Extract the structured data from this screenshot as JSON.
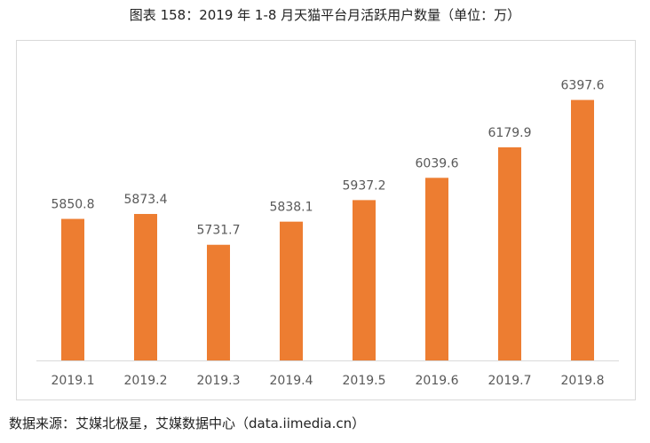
{
  "chart_data": {
    "type": "bar",
    "title": "图表 158：2019 年 1-8 月天猫平台月活跃用户数量（单位：万）",
    "source": "数据来源：艾媒北极星，艾媒数据中心（data.iimedia.cn）",
    "categories": [
      "2019.1",
      "2019.2",
      "2019.3",
      "2019.4",
      "2019.5",
      "2019.6",
      "2019.7",
      "2019.8"
    ],
    "values": [
      5850.8,
      5873.4,
      5731.7,
      5838.1,
      5937.2,
      6039.6,
      6179.9,
      6397.6
    ],
    "labels": [
      "5850.8",
      "5873.4",
      "5731.7",
      "5838.1",
      "5937.2",
      "6039.6",
      "6179.9",
      "6397.6"
    ],
    "ylim": [
      5200,
      6600
    ],
    "grid": false,
    "bar_color": "#ed7d31",
    "axis_color": "#d9d9d9",
    "label_color": "#595959"
  }
}
